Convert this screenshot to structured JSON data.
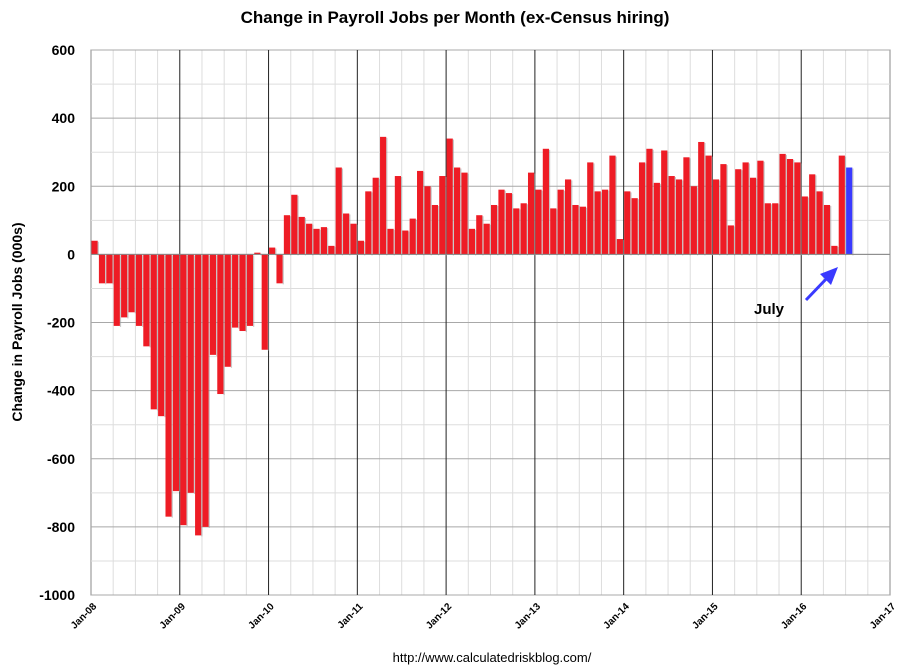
{
  "chart_data": {
    "type": "bar",
    "title": "Change in Payroll Jobs per Month (ex-Census hiring)",
    "ylabel": "Change in Payroll Jobs (000s)",
    "xlabel": "",
    "ylim": [
      -1000,
      600
    ],
    "yticks": [
      600,
      400,
      200,
      0,
      -200,
      -400,
      -600,
      -800,
      -1000
    ],
    "ytick_labels": [
      "600",
      "400",
      "200",
      "0",
      "-200",
      "-400",
      "-600",
      "-800",
      "-1000"
    ],
    "xtick_labels": [
      "Jan-08",
      "Jan-09",
      "Jan-10",
      "Jan-11",
      "Jan-12",
      "Jan-13",
      "Jan-14",
      "Jan-15",
      "Jan-16",
      "Jan-17"
    ],
    "x_start": "Jan-08",
    "x_end": "Jan-17",
    "grid": true,
    "series": [
      {
        "color": "#ee1c25",
        "highlight_color": "#3a3aff",
        "values": [
          40,
          -85,
          -85,
          -210,
          -185,
          -170,
          -210,
          -270,
          -455,
          -475,
          -770,
          -695,
          -795,
          -700,
          -825,
          -800,
          -295,
          -410,
          -330,
          -215,
          -225,
          -210,
          5,
          -280,
          20,
          -85,
          115,
          175,
          110,
          90,
          75,
          80,
          25,
          255,
          120,
          90,
          40,
          185,
          225,
          345,
          75,
          230,
          70,
          105,
          245,
          200,
          145,
          230,
          340,
          255,
          240,
          75,
          115,
          90,
          145,
          190,
          180,
          135,
          150,
          240,
          190,
          310,
          135,
          190,
          220,
          145,
          140,
          270,
          185,
          190,
          290,
          45,
          185,
          165,
          270,
          310,
          210,
          305,
          230,
          220,
          285,
          200,
          330,
          290,
          220,
          265,
          85,
          250,
          270,
          225,
          275,
          150,
          150,
          295,
          280,
          270,
          170,
          235,
          185,
          145,
          25,
          290,
          255
        ],
        "highlight_index": 102
      }
    ],
    "annotations": [
      {
        "text": "July",
        "color": "#3a3aff"
      }
    ],
    "source": "http://www.calculatedriskblog.com/"
  }
}
